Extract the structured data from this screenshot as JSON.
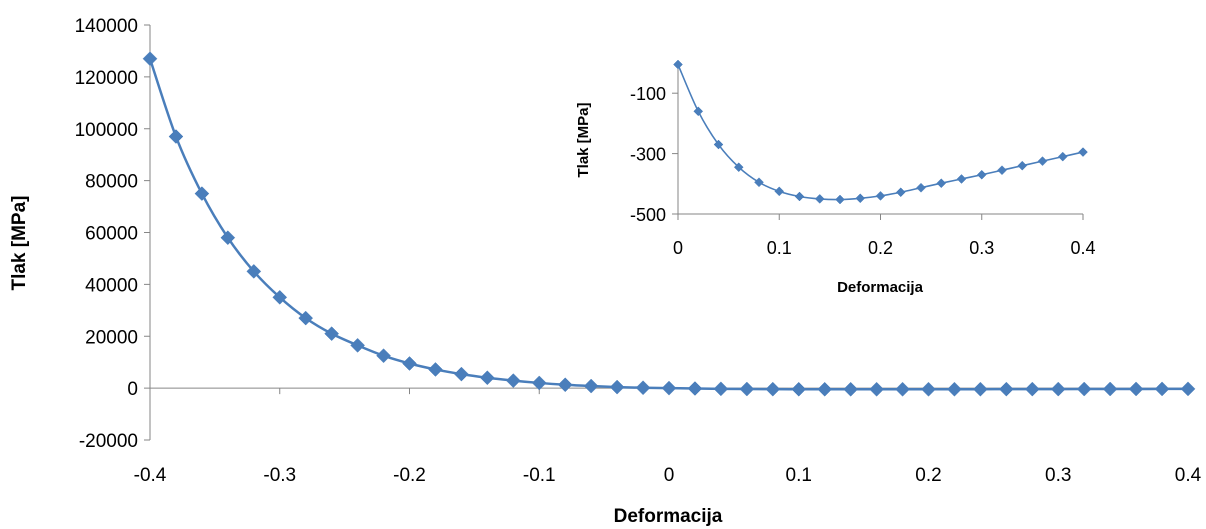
{
  "colors": {
    "series": "#4a7ebb",
    "axis": "#868686"
  },
  "chart_data": [
    {
      "id": "main",
      "type": "line",
      "xlabel": "Deformacija",
      "ylabel": "Tlak [MPa]",
      "xlim": [
        -0.4,
        0.4
      ],
      "ylim": [
        -20000,
        140000
      ],
      "xticks": [
        -0.4,
        -0.3,
        -0.2,
        -0.1,
        0,
        0.1,
        0.2,
        0.3,
        0.4
      ],
      "yticks": [
        -20000,
        0,
        20000,
        40000,
        60000,
        80000,
        100000,
        120000,
        140000
      ],
      "grid": false,
      "legend": "none",
      "marker": "diamond",
      "x": [
        -0.4,
        -0.38,
        -0.36,
        -0.34,
        -0.32,
        -0.3,
        -0.28,
        -0.26,
        -0.24,
        -0.22,
        -0.2,
        -0.18,
        -0.16,
        -0.14,
        -0.12,
        -0.1,
        -0.08,
        -0.06,
        -0.04,
        -0.02,
        0,
        0.02,
        0.04,
        0.06,
        0.08,
        0.1,
        0.12,
        0.14,
        0.16,
        0.18,
        0.2,
        0.22,
        0.24,
        0.26,
        0.28,
        0.3,
        0.32,
        0.34,
        0.36,
        0.38,
        0.4
      ],
      "y": [
        127000,
        97000,
        75000,
        58000,
        45000,
        35000,
        27000,
        21000,
        16500,
        12500,
        9500,
        7200,
        5400,
        4000,
        2900,
        2000,
        1300,
        800,
        400,
        150,
        0,
        -150,
        -270,
        -350,
        -400,
        -430,
        -445,
        -452,
        -450,
        -445,
        -440,
        -430,
        -415,
        -400,
        -385,
        -370,
        -355,
        -340,
        -325,
        -310,
        -295
      ]
    },
    {
      "id": "inset",
      "type": "line",
      "xlabel": "Deformacija",
      "ylabel": "Tlak [MPa]",
      "xlim": [
        0,
        0.4
      ],
      "ylim": [
        -500,
        0
      ],
      "xticks": [
        0,
        0.1,
        0.2,
        0.3,
        0.4
      ],
      "yticks": [
        -500,
        -300,
        -100
      ],
      "grid": false,
      "legend": "none",
      "marker": "diamond",
      "x": [
        0,
        0.02,
        0.04,
        0.06,
        0.08,
        0.1,
        0.12,
        0.14,
        0.16,
        0.18,
        0.2,
        0.22,
        0.24,
        0.26,
        0.28,
        0.3,
        0.32,
        0.34,
        0.36,
        0.38,
        0.4
      ],
      "y": [
        -5,
        -160,
        -270,
        -345,
        -395,
        -425,
        -442,
        -450,
        -452,
        -448,
        -440,
        -428,
        -413,
        -398,
        -384,
        -370,
        -355,
        -340,
        -325,
        -310,
        -295
      ]
    }
  ]
}
